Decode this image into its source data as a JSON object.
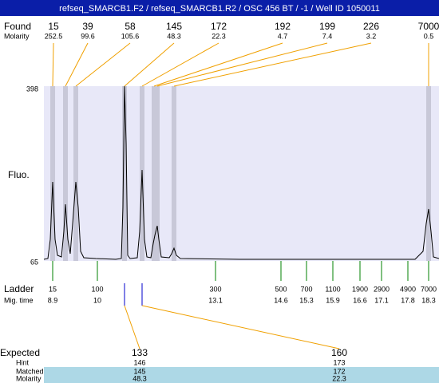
{
  "header": {
    "title": "refseq_SMARCB1.F2 / refseq_SMARCB1.R2 / OSC 456 BT / -1 / Well ID 1050011"
  },
  "found": {
    "label": "Found",
    "molarity_label": "Molarity",
    "peaks": [
      {
        "size": 15,
        "molarity": 252.5
      },
      {
        "size": 39,
        "molarity": 99.6
      },
      {
        "size": 58,
        "molarity": 105.6
      },
      {
        "size": 145,
        "molarity": 48.3
      },
      {
        "size": 172,
        "molarity": 22.3
      },
      {
        "size": 192,
        "molarity": 4.7
      },
      {
        "size": 199,
        "molarity": 7.4
      },
      {
        "size": 226,
        "molarity": 3.2
      },
      {
        "size": 7000,
        "molarity": 0.5
      }
    ]
  },
  "y_axis": {
    "label": "Fluo.",
    "top": 398,
    "bottom": 65
  },
  "ladder": {
    "label": "Ladder",
    "time_label": "Mig. time",
    "points": [
      {
        "size": 15,
        "time": 8.9
      },
      {
        "size": 100,
        "time": 10
      },
      {
        "size": 300,
        "time": 13.1
      },
      {
        "size": 500,
        "time": 14.6
      },
      {
        "size": 700,
        "time": 15.3
      },
      {
        "size": 1100,
        "time": 15.9
      },
      {
        "size": 1900,
        "time": 16.6
      },
      {
        "size": 2900,
        "time": 17.1
      },
      {
        "size": 4900,
        "time": 17.8
      },
      {
        "size": 7000,
        "time": 18.3
      }
    ]
  },
  "expected": {
    "labels": [
      "Expected",
      "Hint",
      "Matched",
      "Molarity"
    ],
    "columns": [
      {
        "expected": 133,
        "hint": 146,
        "matched": 145,
        "molarity": 48.3
      },
      {
        "expected": 160,
        "hint": 173,
        "matched": 172,
        "molarity": 22.3
      }
    ]
  }
}
